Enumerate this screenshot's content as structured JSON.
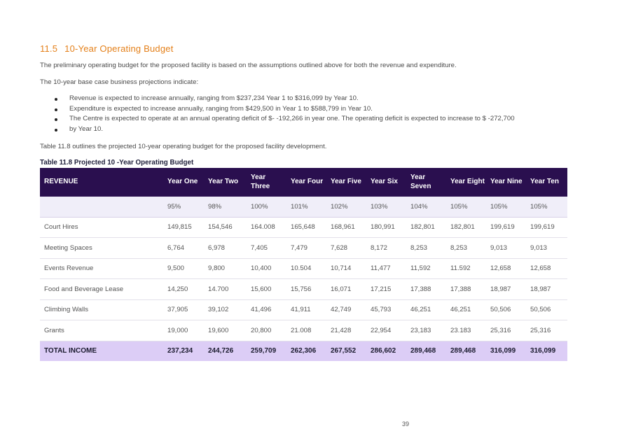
{
  "heading": {
    "number": "11.5",
    "title": "10-Year Operating Budget"
  },
  "intro": "The preliminary operating budget for the proposed facility is based on the assumptions outlined above for both the revenue and expenditure.",
  "projections_intro": "The 10-year base case business projections indicate:",
  "bullets": [
    "Revenue is expected to increase annually, ranging from $237,234 Year 1 to $316,099 by Year 10.",
    "Expenditure is expected to increase annually, ranging from $429,500 in Year 1 to $588,799 in Year 10.",
    "The Centre is expected to operate at an annual operating deficit of $- -192,266 in year one. The operating deficit is expected to increase to $ -272,700",
    "by Year 10."
  ],
  "table_intro": "Table 11.8 outlines the projected 10-year operating budget for the proposed facility development.",
  "table_caption": "Table 11.8 Projected 10 -Year Operating Budget",
  "table": {
    "headers": [
      "REVENUE",
      "Year One",
      "Year Two",
      "Year Three",
      "Year Four",
      "Year Five",
      "Year Six",
      "Year Seven",
      "Year Eight",
      "Year Nine",
      "Year Ten"
    ],
    "rows": [
      [
        "",
        "95%",
        "98%",
        "100%",
        "101%",
        "102%",
        "103%",
        "104%",
        "105%",
        "105%",
        "105%"
      ],
      [
        "Court Hires",
        "149,815",
        "154,546",
        "164.008",
        "165,648",
        "168,961",
        "180,991",
        "182,801",
        "182,801",
        "199,619",
        "199,619"
      ],
      [
        "Meeting Spaces",
        "6,764",
        "6,978",
        "7,405",
        "7,479",
        "7,628",
        "8,172",
        "8,253",
        "8,253",
        "9,013",
        "9,013"
      ],
      [
        "Events Revenue",
        "9,500",
        "9,800",
        "10,400",
        "10.504",
        "10,714",
        "11,477",
        "11,592",
        "11.592",
        "12,658",
        "12,658"
      ],
      [
        "Food and Beverage Lease",
        "14,250",
        "14.700",
        "15,600",
        "15,756",
        "16,071",
        "17,215",
        "17,388",
        "17,388",
        "18,987",
        "18,987"
      ],
      [
        "Climbing Walls",
        "37,905",
        "39,102",
        "41,496",
        "41,911",
        "42,749",
        "45,793",
        "46,251",
        "46,251",
        "50,506",
        "50,506"
      ],
      [
        "Grants",
        "19,000",
        "19,600",
        "20,800",
        "21.008",
        "21,428",
        "22,954",
        "23,183",
        "23.183",
        "25,316",
        "25,316"
      ],
      [
        "TOTAL INCOME",
        "237,234",
        "244,726",
        "259,709",
        "262,306",
        "267,552",
        "286,602",
        "289,468",
        "289,468",
        "316,099",
        "316,099"
      ]
    ]
  },
  "page_number": "39",
  "colors": {
    "heading": "#e4801a",
    "table_header_bg": "#2a0f4f",
    "total_row_bg": "#dccdf6",
    "pct_row_bg": "#f0eef9"
  }
}
